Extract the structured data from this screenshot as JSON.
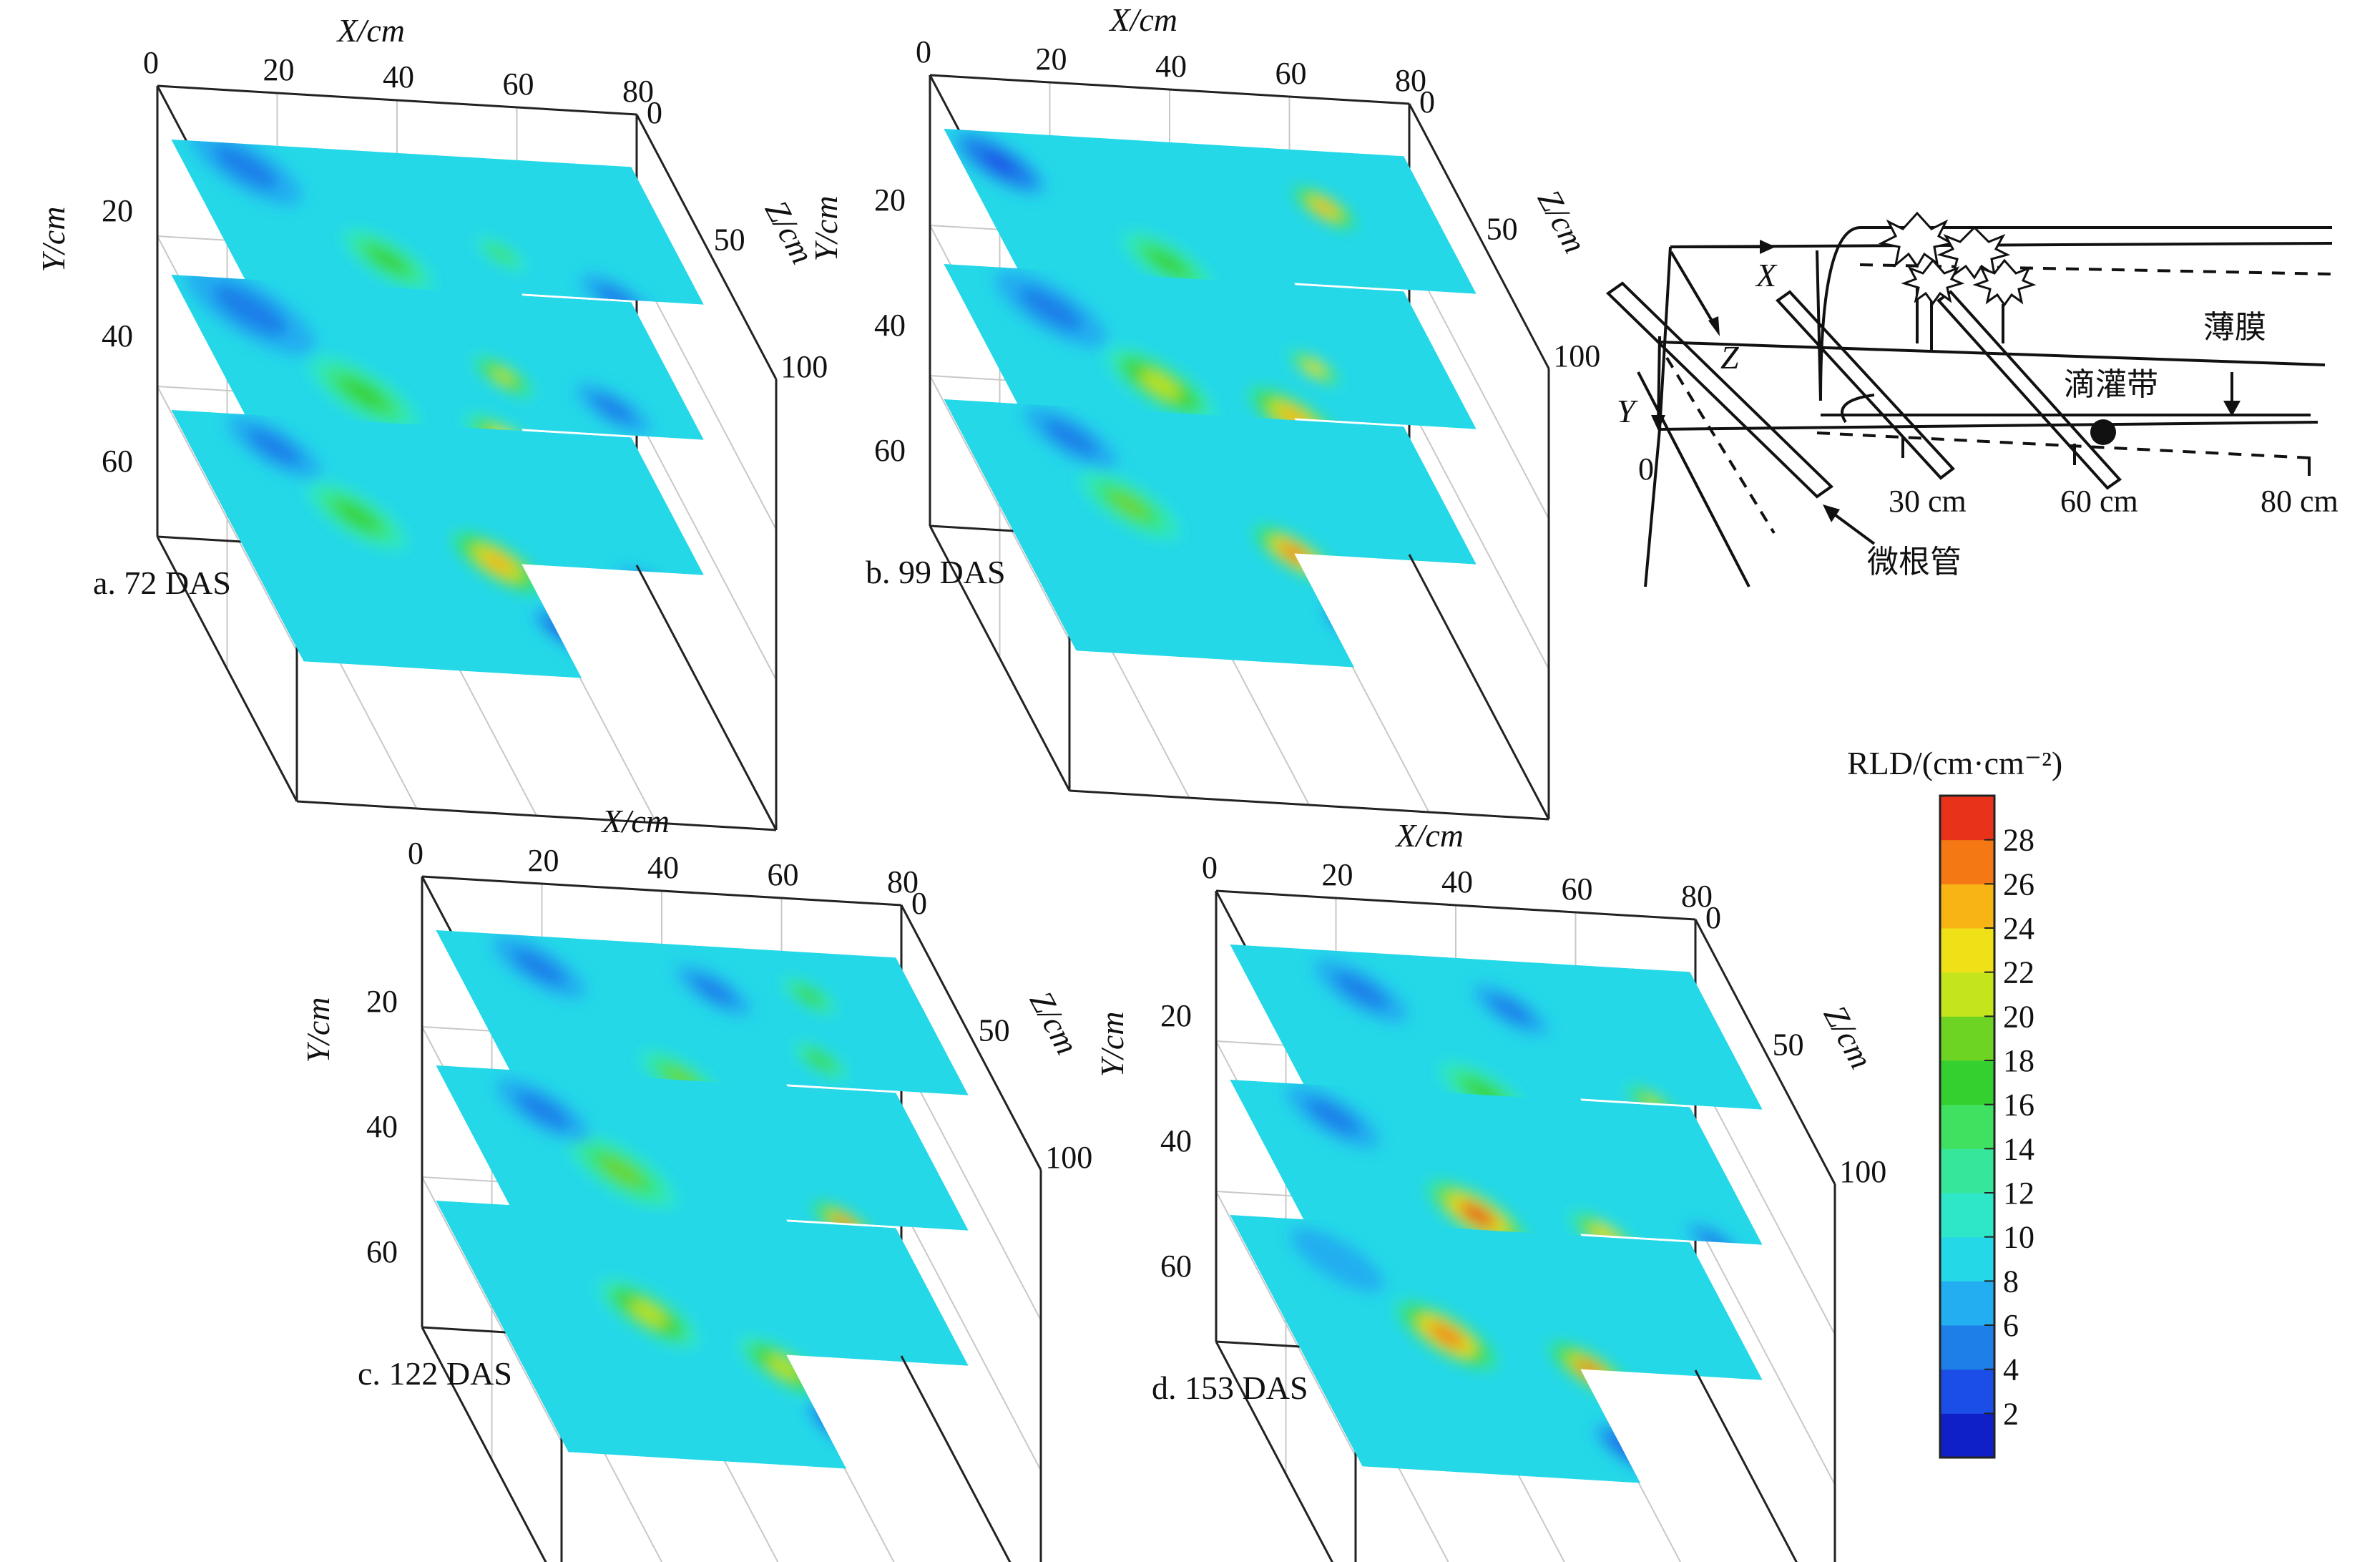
{
  "chart_data": {
    "type": "heatmap",
    "colorbar": {
      "title": "RLD/(cm·cm⁻²)",
      "ticks": [
        "2",
        "4",
        "6",
        "8",
        "10",
        "12",
        "14",
        "16",
        "18",
        "20",
        "22",
        "24",
        "26",
        "28"
      ],
      "colors": [
        "#1020c8",
        "#1a4ee6",
        "#1f7fe8",
        "#22aef0",
        "#25d8e8",
        "#2ee6c8",
        "#36e69a",
        "#40e060",
        "#34d030",
        "#6ed424",
        "#c4e41c",
        "#f0e018",
        "#f8b414",
        "#f47814",
        "#e8321a"
      ]
    },
    "axes": {
      "x_title": "X/cm",
      "y_title": "Y/cm",
      "z_title": "Z/cm",
      "x_ticks": [
        "0",
        "20",
        "40",
        "60",
        "80"
      ],
      "y_ticks": [
        "20",
        "40",
        "60"
      ],
      "z_ticks": [
        "0",
        "50",
        "100"
      ]
    },
    "panels": [
      {
        "caption": "a. 72 DAS",
        "slices": [
          {
            "hotspots": [
              [
                0.35,
                0.45,
                0.1,
                16
              ],
              [
                0.6,
                0.4,
                0.07,
                14
              ],
              [
                0.8,
                0.55,
                0.08,
                4
              ],
              [
                0.15,
                0.12,
                0.12,
                4
              ],
              [
                0.5,
                0.75,
                0.07,
                4
              ]
            ]
          },
          {
            "hotspots": [
              [
                0.3,
                0.45,
                0.12,
                17
              ],
              [
                0.55,
                0.6,
                0.09,
                22
              ],
              [
                0.62,
                0.35,
                0.07,
                20
              ],
              [
                0.68,
                0.8,
                0.08,
                3
              ],
              [
                0.15,
                0.15,
                0.14,
                4
              ],
              [
                0.82,
                0.45,
                0.08,
                5
              ]
            ]
          },
          {
            "hotspots": [
              [
                0.3,
                0.4,
                0.11,
                17
              ],
              [
                0.55,
                0.55,
                0.1,
                24
              ],
              [
                0.62,
                0.8,
                0.07,
                3
              ],
              [
                0.85,
                0.62,
                0.07,
                4
              ],
              [
                0.2,
                0.15,
                0.1,
                5
              ]
            ]
          }
        ]
      },
      {
        "caption": "b. 99 DAS",
        "slices": [
          {
            "hotspots": [
              [
                0.35,
                0.5,
                0.1,
                16
              ],
              [
                0.75,
                0.25,
                0.07,
                24
              ],
              [
                0.78,
                0.65,
                0.06,
                24
              ],
              [
                0.1,
                0.15,
                0.1,
                3
              ],
              [
                0.55,
                0.8,
                0.07,
                5
              ]
            ]
          },
          {
            "hotspots": [
              [
                0.35,
                0.45,
                0.12,
                21
              ],
              [
                0.6,
                0.55,
                0.1,
                24
              ],
              [
                0.7,
                0.35,
                0.06,
                22
              ],
              [
                0.65,
                0.8,
                0.08,
                3
              ],
              [
                0.2,
                0.18,
                0.12,
                4
              ]
            ]
          },
          {
            "hotspots": [
              [
                0.3,
                0.4,
                0.11,
                18
              ],
              [
                0.6,
                0.55,
                0.09,
                27
              ],
              [
                0.65,
                0.82,
                0.07,
                3
              ],
              [
                0.85,
                0.65,
                0.06,
                20
              ],
              [
                0.25,
                0.15,
                0.1,
                5
              ]
            ]
          }
        ]
      },
      {
        "caption": "c. 122 DAS",
        "slices": [
          {
            "hotspots": [
              [
                0.38,
                0.55,
                0.09,
                18
              ],
              [
                0.7,
                0.45,
                0.06,
                16
              ],
              [
                0.75,
                0.2,
                0.06,
                16
              ],
              [
                0.2,
                0.15,
                0.1,
                4
              ],
              [
                0.55,
                0.2,
                0.08,
                4
              ],
              [
                0.62,
                0.75,
                0.07,
                5
              ]
            ]
          },
          {
            "hotspots": [
              [
                0.3,
                0.4,
                0.12,
                18
              ],
              [
                0.72,
                0.55,
                0.07,
                26
              ],
              [
                0.55,
                0.82,
                0.08,
                3
              ],
              [
                0.2,
                0.18,
                0.1,
                4
              ],
              [
                0.85,
                0.7,
                0.06,
                4
              ]
            ]
          },
          {
            "hotspots": [
              [
                0.35,
                0.42,
                0.11,
                20
              ],
              [
                0.58,
                0.6,
                0.1,
                20
              ],
              [
                0.65,
                0.82,
                0.09,
                2
              ],
              [
                0.85,
                0.75,
                0.07,
                4
              ]
            ]
          }
        ]
      },
      {
        "caption": "d. 153 DAS",
        "slices": [
          {
            "hotspots": [
              [
                0.4,
                0.55,
                0.1,
                17
              ],
              [
                0.75,
                0.55,
                0.06,
                20
              ],
              [
                0.25,
                0.18,
                0.1,
                4
              ],
              [
                0.55,
                0.22,
                0.08,
                4
              ],
              [
                0.75,
                0.85,
                0.07,
                5
              ]
            ]
          },
          {
            "hotspots": [
              [
                0.4,
                0.5,
                0.11,
                28
              ],
              [
                0.65,
                0.55,
                0.08,
                22
              ],
              [
                0.7,
                0.8,
                0.08,
                3
              ],
              [
                0.2,
                0.15,
                0.1,
                4
              ],
              [
                0.88,
                0.55,
                0.06,
                5
              ]
            ]
          },
          {
            "hotspots": [
              [
                0.35,
                0.45,
                0.11,
                27
              ],
              [
                0.62,
                0.55,
                0.09,
                26
              ],
              [
                0.62,
                0.85,
                0.08,
                3
              ],
              [
                0.85,
                0.7,
                0.07,
                4
              ],
              [
                0.2,
                0.18,
                0.1,
                6
              ]
            ]
          }
        ]
      }
    ]
  },
  "schematic": {
    "axis_x": "X",
    "axis_y": "Y",
    "axis_z": "Z",
    "origin": "0",
    "film_label": "薄膜",
    "drip_label": "滴灌带",
    "tube_label": "微根管",
    "dist_30": "30 cm",
    "dist_60": "60 cm",
    "dist_80": "80 cm"
  }
}
